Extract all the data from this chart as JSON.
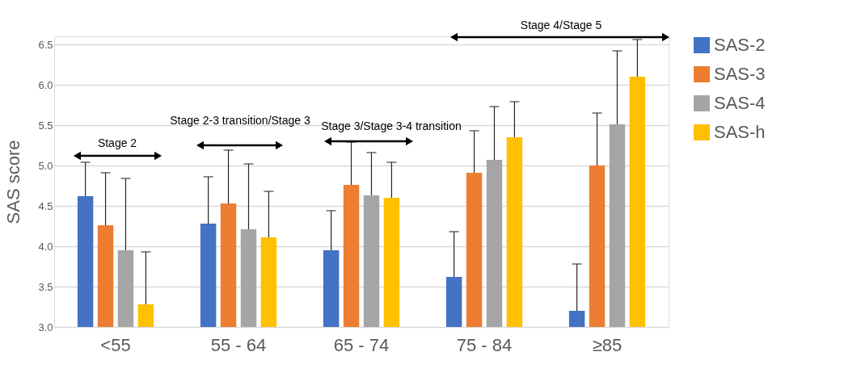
{
  "chart_data": {
    "type": "bar",
    "ylabel": "SAS score",
    "categories": [
      "<55",
      "55 - 64",
      "65 - 74",
      "75 - 84",
      "≥85"
    ],
    "series": [
      {
        "name": "SAS-2",
        "color": "#4472c4",
        "values": [
          4.62,
          4.28,
          3.95,
          3.62,
          3.2
        ],
        "errors": [
          [
            4.62,
            5.04
          ],
          [
            4.28,
            4.86
          ],
          [
            3.95,
            4.44
          ],
          [
            3.62,
            4.18
          ],
          [
            3.2,
            3.78
          ]
        ]
      },
      {
        "name": "SAS-3",
        "color": "#ed7d31",
        "values": [
          4.26,
          4.53,
          4.76,
          4.91,
          5.0
        ],
        "errors": [
          [
            4.26,
            4.91
          ],
          [
            4.53,
            5.19
          ],
          [
            4.76,
            5.29
          ],
          [
            4.91,
            5.43
          ],
          [
            5.0,
            5.65
          ]
        ]
      },
      {
        "name": "SAS-4",
        "color": "#a5a5a5",
        "values": [
          3.95,
          4.21,
          4.63,
          5.07,
          5.51
        ],
        "errors": [
          [
            3.95,
            4.84
          ],
          [
            4.21,
            5.02
          ],
          [
            4.63,
            5.16
          ],
          [
            5.07,
            5.73
          ],
          [
            5.51,
            6.42
          ]
        ]
      },
      {
        "name": "SAS-h",
        "color": "#ffc000",
        "values": [
          3.28,
          4.11,
          4.6,
          5.35,
          6.1
        ],
        "errors": [
          [
            3.28,
            3.93
          ],
          [
            4.11,
            4.68
          ],
          [
            4.6,
            5.04
          ],
          [
            5.35,
            5.79
          ],
          [
            6.1,
            6.56
          ]
        ]
      }
    ],
    "ylim": [
      3.0,
      6.6
    ],
    "yticks": [
      {
        "value": 3.0,
        "label": "3.0"
      },
      {
        "value": 3.5,
        "label": "3.5"
      },
      {
        "value": 4.0,
        "label": "4.0"
      },
      {
        "value": 4.5,
        "label": "4.5"
      },
      {
        "value": 5.0,
        "label": "5.0"
      },
      {
        "value": 5.5,
        "label": "5.5"
      },
      {
        "value": 6.0,
        "label": "6.0"
      },
      {
        "value": 6.5,
        "label": "6.5"
      }
    ],
    "grid": "y",
    "legend": "right",
    "annotations": [
      "Stage 2",
      "Stage 2-3 transition/Stage 3",
      "Stage 3/Stage 3-4 transition",
      "Stage 4/Stage 5"
    ]
  }
}
